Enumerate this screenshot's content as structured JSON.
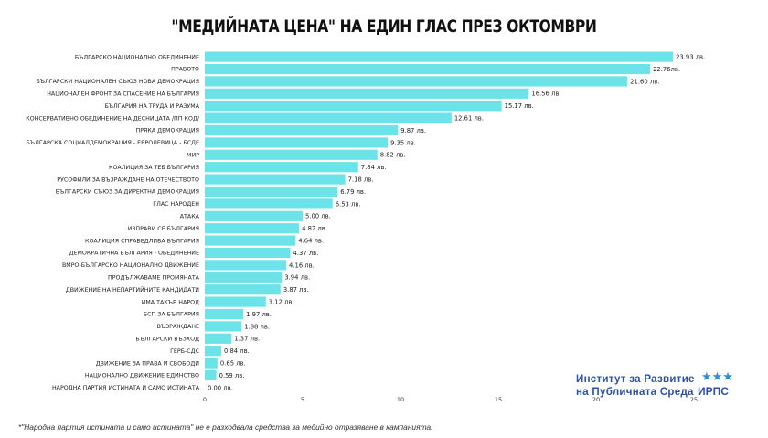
{
  "chart_data": {
    "type": "bar",
    "orientation": "horizontal",
    "title": "\"МЕДИЙНАТА ЦЕНА\" НА ЕДИН ГЛАС ПРЕЗ ОКТОМВРИ",
    "xlabel": "",
    "ylabel": "",
    "xlim": [
      0,
      25
    ],
    "xticks": [
      "0",
      "5",
      "10",
      "15",
      "20",
      "25"
    ],
    "grid": false,
    "bar_color": "#6be3e8",
    "categories": [
      "БЪЛГАРСКО НАЦИОНАЛНО ОБЕДИНЕНИЕ",
      "ПРАВОТО",
      "БЪЛГАРСКИ НАЦИОНАЛЕН СЪЮЗ НОВА ДЕМОКРАЦИЯ",
      "НАЦИОНАЛЕН ФРОНТ ЗА СПАСЕНИЕ НА БЪЛГАРИЯ",
      "БЪЛГАРИЯ НА ТРУДА И РАЗУМА",
      "КОНСЕРВАТИВНО ОБЕДИНЕНИЕ НА ДЕСНИЦАТА /ПП КОД/",
      "ПРЯКА ДЕМОКРАЦИЯ",
      "БЪЛГАРСКА СОЦИАЛДЕМОКРАЦИЯ - ЕВРОЛЕВИЦА - БСДЕ",
      "МИР",
      "КОАЛИЦИЯ ЗА ТЕБ БЪЛГАРИЯ",
      "РУСОФИЛИ ЗА ВЪЗРАЖДАНЕ НА ОТЕЧЕСТВОТО",
      "БЪЛГАРСКИ СЪЮЗ ЗА ДИРЕКТНА ДЕМОКРАЦИЯ",
      "ГЛАС НАРОДЕН",
      "АТАКА",
      "ИЗПРАВИ СЕ БЪЛГАРИЯ",
      "КОАЛИЦИЯ СПРАВЕДЛИВА БЪЛГАРИЯ",
      "ДЕМОКРАТИЧНА БЪЛГАРИЯ - ОБЕДИНЕНИЕ",
      "ВМРО-БЪЛГАРСКО НАЦИОНАЛНО ДВИЖЕНИЕ",
      "ПРОДЪЛЖАВАМЕ ПРОМЯНАТА",
      "ДВИЖЕНИЕ НА НЕПАРТИЙНИТЕ КАНДИДАТИ",
      "ИМА ТАКЪВ НАРОД",
      "БСП ЗА БЪЛГАРИЯ",
      "ВЪЗРАЖДАНЕ",
      "БЪЛГАРСКИ ВЪЗХОД",
      "ГЕРБ-СДС",
      "ДВИЖЕНИЕ ЗА ПРАВА И СВОБОДИ",
      "НАЦИОНАЛНО ДВИЖЕНИЕ ЕДИНСТВО",
      "НАРОДНА ПАРТИЯ ИСТИНАТА И САМО ИСТИНАТА"
    ],
    "values": [
      23.93,
      22.76,
      21.6,
      16.56,
      15.17,
      12.61,
      9.87,
      9.35,
      8.82,
      7.84,
      7.18,
      6.79,
      6.53,
      5.0,
      4.82,
      4.64,
      4.37,
      4.16,
      3.94,
      3.87,
      3.12,
      1.97,
      1.88,
      1.37,
      0.84,
      0.65,
      0.59,
      0.0
    ],
    "value_labels": [
      "23.93 лв.",
      "22.76лв.",
      "21.60 лв.",
      "16.56 лв.",
      "15.17 лв.",
      "12.61 лв.",
      "9.87 лв.",
      "9.35 лв.",
      "8.82 лв.",
      "7.84 лв.",
      "7.18 лв.",
      "6.79 лв.",
      "6.53 лв.",
      "5.00 лв.",
      "4.82 лв.",
      "4.64 лв.",
      "4.37 лв.",
      "4.16 лв.",
      "3.94 лв.",
      "3.87 лв.",
      "3.12 лв.",
      "1.97 лв.",
      "1.88 лв.",
      "1.37 лв.",
      "0.84 лв.",
      "0.65 лв.",
      "0.59 лв.",
      "0.00 лв."
    ]
  },
  "logo": {
    "line1": "Институт за Развитие",
    "line2": "на Публичната Среда",
    "abbr": "ИРПС"
  },
  "footnote": "*\"Народна партия истината и само истината\" не е разходвала средства за медийно отразяване в кампанията."
}
